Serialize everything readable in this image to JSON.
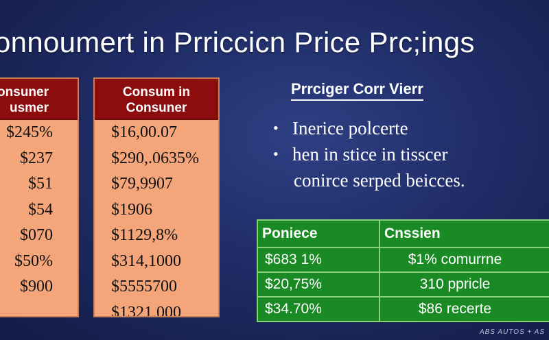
{
  "title": "onnoumert in Prriccicn Price Prc;ings",
  "left_table": {
    "header_line1": "onsuner",
    "header_line2": "usmer",
    "rows": [
      "$245%",
      "$237",
      "$51",
      "$54",
      "$070",
      "$50%",
      "$900"
    ]
  },
  "mid_table": {
    "header_line1": "Consum in",
    "header_line2": "Consuner",
    "rows": [
      "$16,00.07",
      "$290,.0635%",
      "$79,9907",
      "$1906",
      "$1129,8%",
      "$314,1000",
      "$5555700",
      "$1321,000"
    ]
  },
  "right_panel": {
    "subheading": "Prrciger Corr Vierr",
    "bullets": [
      {
        "bullet": "•",
        "text": "Inerice polcerte"
      },
      {
        "bullet": "•",
        "text": "hen in stice in tisscer",
        "continuation": "conirce serped beicces."
      }
    ]
  },
  "green_table": {
    "headers": [
      "Poniece",
      "Cnssien"
    ],
    "rows": [
      [
        "$683 1%",
        "$1% comurrne"
      ],
      [
        "$20,75%",
        "310 ppricle"
      ],
      [
        "$34.70%",
        "$86 recerte"
      ]
    ]
  },
  "footer": "ABS AUTOS + AS",
  "colors": {
    "background": "#1f2c66",
    "consumer_table_fill": "#f4a67a",
    "consumer_header": "#8c0d0d",
    "green_table": "#1a8a25"
  }
}
